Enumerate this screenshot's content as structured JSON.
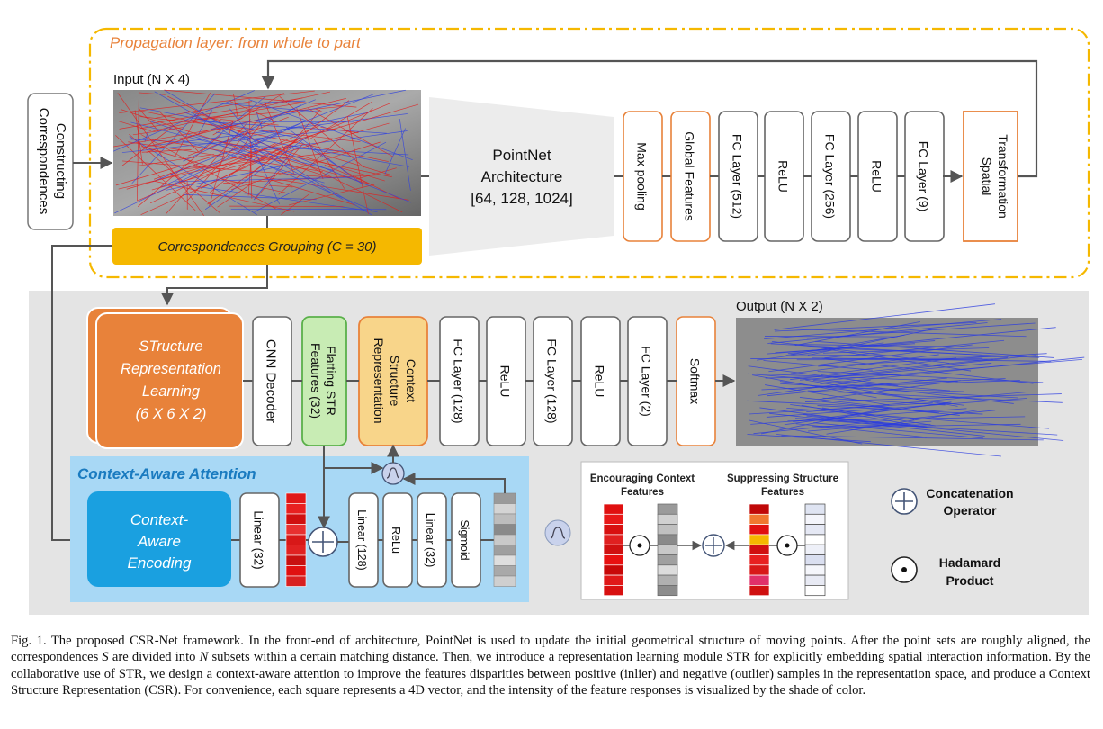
{
  "propagation": {
    "title": "Propagation layer: from whole to part",
    "input_label": "Input (N X 4)",
    "constructing": [
      "Constructing",
      "Correspondences"
    ],
    "grouping": "Correspondences Grouping (C = 30)",
    "pointnet": [
      "PointNet",
      "Architecture",
      "[64, 128, 1024]"
    ],
    "layers": [
      "Max pooling",
      "Global Features",
      "FC Layer (512)",
      "ReLU",
      "FC Layer (256)",
      "ReLU",
      "FC Layer (9)"
    ],
    "spatial": [
      "Spatial",
      "Transformation"
    ]
  },
  "str": {
    "block": [
      "STructure",
      "Representation",
      "Learning",
      "(6 X 6 X 2)"
    ],
    "cnn_decoder": "CNN Decoder",
    "flatting": [
      "Flatting STR",
      "Features (32)"
    ],
    "context_structure": [
      "Context",
      "Structure",
      "Representation"
    ],
    "layers": [
      "FC Layer (128)",
      "ReLU",
      "FC Layer (128)",
      "ReLU",
      "FC Layer (2)",
      "Softmax"
    ],
    "output_label": "Output (N X 2)"
  },
  "attention": {
    "title": "Context-Aware Attention",
    "encoding": [
      "Context-",
      "Aware",
      "Encoding"
    ],
    "layers": [
      "Linear (32)",
      "Linear (128)",
      "ReLu",
      "Linear (32)",
      "Sigmoid"
    ]
  },
  "legend_panel": {
    "encouraging": [
      "Encouraging Context",
      "Features"
    ],
    "suppressing": [
      "Suppressing Structure",
      "Features"
    ]
  },
  "legend": {
    "concat": [
      "Concatenation",
      "Operator"
    ],
    "hadamard": [
      "Hadamard",
      "Product"
    ]
  },
  "caption": {
    "p1": "Fig. 1.   The proposed CSR-Net framework. In the front-end of architecture, PointNet is used to update the initial geometrical structure of moving points. After the point sets are roughly aligned, the correspondences ",
    "s": "S",
    "p2": " are divided into ",
    "n": "N",
    "p3": " subsets within a certain matching distance. Then, we introduce a representation learning module STR for explicitly embedding spatial interaction information. By the collaborative use of STR, we design a context-aware attention to improve the features disparities between positive (inlier) and negative (outlier) samples in the representation space, and produce a Context Structure Representation (CSR). For convenience, each square represents a 4D vector, and the intensity of the feature responses is visualized by the shade of color."
  },
  "colors": {
    "orange": "#e8823a",
    "yellow": "#f5b800",
    "attention_bg": "#a8d8f5",
    "encoding": "#1aa0e0",
    "gray_panel": "#e4e4e4"
  }
}
